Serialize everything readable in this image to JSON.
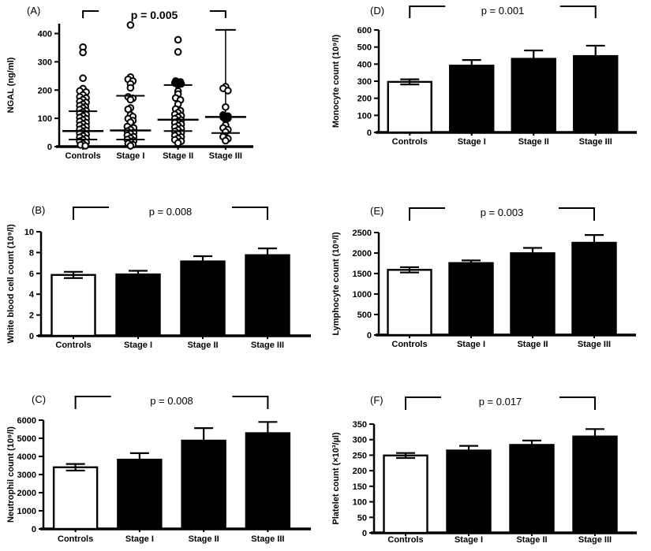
{
  "figure_style": {
    "background": "#ffffff",
    "ink": "#000000",
    "control_bar_fill": "#ffffff",
    "stage_bar_fill": "#000000"
  },
  "chart_data": [
    {
      "id": "A",
      "label": "(A)",
      "type": "scatter",
      "p_label": "p = 0.005",
      "p_bold": true,
      "ylabel": "NGAL (ng/ml)",
      "ylim": [
        0,
        435
      ],
      "yticks": [
        0,
        100,
        200,
        300,
        400
      ],
      "categories": [
        "Controls",
        "Stage I",
        "Stage II",
        "Stage III"
      ],
      "comparison": {
        "from": "Controls",
        "to": "Stage III"
      },
      "groups": [
        {
          "name": "Controls",
          "median": 55,
          "upper": 125,
          "lower": 25,
          "points": [
            [
              352,
              0
            ],
            [
              333,
              0
            ],
            [
              242,
              0
            ],
            [
              205,
              0
            ],
            [
              197,
              -4
            ],
            [
              193,
              4
            ],
            [
              183,
              0
            ],
            [
              176,
              -4
            ],
            [
              172,
              4
            ],
            [
              166,
              0
            ],
            [
              160,
              -4
            ],
            [
              156,
              4
            ],
            [
              150,
              0
            ],
            [
              145,
              -4
            ],
            [
              141,
              3
            ],
            [
              136,
              0
            ],
            [
              131,
              -4
            ],
            [
              127,
              4
            ],
            [
              122,
              0
            ],
            [
              117,
              -4
            ],
            [
              113,
              4
            ],
            [
              108,
              0
            ],
            [
              103,
              -4
            ],
            [
              99,
              4
            ],
            [
              94,
              0
            ],
            [
              89,
              -4
            ],
            [
              85,
              4
            ],
            [
              80,
              0
            ],
            [
              75,
              -4
            ],
            [
              71,
              4
            ],
            [
              66,
              0
            ],
            [
              61,
              -4
            ],
            [
              57,
              4
            ],
            [
              52,
              0
            ],
            [
              47,
              -4
            ],
            [
              43,
              4
            ],
            [
              38,
              0
            ],
            [
              33,
              -4
            ],
            [
              29,
              4
            ],
            [
              24,
              0
            ],
            [
              19,
              -4
            ],
            [
              15,
              4
            ],
            [
              10,
              0
            ],
            [
              6,
              -3
            ],
            [
              3,
              3
            ]
          ]
        },
        {
          "name": "Stage I",
          "median": 57,
          "upper": 180,
          "lower": 25,
          "points": [
            [
              430,
              0
            ],
            [
              246,
              0
            ],
            [
              238,
              -3
            ],
            [
              232,
              3
            ],
            [
              222,
              0
            ],
            [
              208,
              0
            ],
            [
              176,
              -3
            ],
            [
              171,
              3
            ],
            [
              166,
              0
            ],
            [
              137,
              0
            ],
            [
              132,
              -3
            ],
            [
              112,
              0
            ],
            [
              106,
              3
            ],
            [
              99,
              -3
            ],
            [
              92,
              3
            ],
            [
              86,
              0
            ],
            [
              71,
              -4
            ],
            [
              66,
              4
            ],
            [
              60,
              0
            ],
            [
              55,
              -4
            ],
            [
              50,
              4
            ],
            [
              45,
              0
            ],
            [
              40,
              -4
            ],
            [
              35,
              4
            ],
            [
              30,
              0
            ],
            [
              25,
              -4
            ],
            [
              21,
              4
            ],
            [
              16,
              0
            ],
            [
              11,
              -3
            ],
            [
              7,
              3
            ],
            [
              3,
              0
            ]
          ]
        },
        {
          "name": "Stage II",
          "median": 95,
          "upper": 218,
          "lower": 55,
          "points": [
            [
              378,
              0
            ],
            [
              335,
              0
            ],
            [
              232,
              -3,
              1
            ],
            [
              229,
              3,
              1
            ],
            [
              225,
              -4,
              1
            ],
            [
              222,
              4,
              1
            ],
            [
              218,
              0,
              1
            ],
            [
              196,
              0
            ],
            [
              186,
              0
            ],
            [
              172,
              -3
            ],
            [
              165,
              3
            ],
            [
              150,
              0
            ],
            [
              133,
              -3
            ],
            [
              127,
              3
            ],
            [
              120,
              0
            ],
            [
              114,
              -4
            ],
            [
              109,
              4
            ],
            [
              104,
              0
            ],
            [
              99,
              -4
            ],
            [
              94,
              4
            ],
            [
              89,
              0
            ],
            [
              84,
              -4
            ],
            [
              79,
              4
            ],
            [
              74,
              0
            ],
            [
              69,
              -4
            ],
            [
              64,
              4
            ],
            [
              59,
              0
            ],
            [
              54,
              -4
            ],
            [
              49,
              4
            ],
            [
              44,
              0
            ],
            [
              39,
              -4
            ],
            [
              34,
              4
            ],
            [
              29,
              0
            ],
            [
              24,
              -4
            ],
            [
              19,
              4
            ],
            [
              13,
              0
            ]
          ]
        },
        {
          "name": "Stage III",
          "median": 105,
          "lower": 48,
          "whisker_top": 413,
          "points": [
            [
              212,
              0
            ],
            [
              206,
              -3
            ],
            [
              198,
              3
            ],
            [
              140,
              0
            ],
            [
              112,
              -3,
              1
            ],
            [
              108,
              3,
              1
            ],
            [
              104,
              -3,
              1
            ],
            [
              100,
              3,
              1
            ],
            [
              96,
              0,
              1
            ],
            [
              76,
              0
            ],
            [
              66,
              -3
            ],
            [
              60,
              3
            ],
            [
              52,
              0
            ],
            [
              35,
              -3
            ],
            [
              28,
              3
            ],
            [
              21,
              0
            ]
          ]
        }
      ]
    },
    {
      "id": "B",
      "label": "(B)",
      "type": "bar",
      "p_label": "p = 0.008",
      "p_bold": false,
      "ylabel": "White blood cell count (10⁹/l)",
      "ylim": [
        0,
        10
      ],
      "yticks": [
        0,
        2,
        4,
        6,
        8,
        10
      ],
      "categories": [
        "Controls",
        "Stage I",
        "Stage II",
        "Stage III"
      ],
      "comparison": {
        "from": "Controls",
        "to": "Stage III"
      },
      "values": [
        5.85,
        5.9,
        7.15,
        7.75
      ],
      "errors": [
        0.3,
        0.35,
        0.5,
        0.65
      ],
      "bar_fills": [
        "#ffffff",
        "#000000",
        "#000000",
        "#000000"
      ]
    },
    {
      "id": "C",
      "label": "(C)",
      "type": "bar",
      "p_label": "p = 0.008",
      "p_bold": false,
      "ylabel": "Neutrophil count (10⁹/l)",
      "ylim": [
        0,
        6000
      ],
      "yticks": [
        0,
        1000,
        2000,
        3000,
        4000,
        5000,
        6000
      ],
      "categories": [
        "Controls",
        "Stage I",
        "Stage II",
        "Stage III"
      ],
      "comparison": {
        "from": "Controls",
        "to": "Stage III"
      },
      "values": [
        3400,
        3820,
        4870,
        5280
      ],
      "errors": [
        180,
        360,
        690,
        620
      ],
      "bar_fills": [
        "#ffffff",
        "#000000",
        "#000000",
        "#000000"
      ]
    },
    {
      "id": "D",
      "label": "(D)",
      "type": "bar",
      "p_label": "p = 0.001",
      "p_bold": false,
      "ylabel": "Monocyte count (10⁹/l)",
      "ylim": [
        0,
        600
      ],
      "yticks": [
        0,
        100,
        200,
        300,
        400,
        500,
        600
      ],
      "categories": [
        "Controls",
        "Stage I",
        "Stage II",
        "Stage III"
      ],
      "comparison": {
        "from": "Controls",
        "to": "Stage III"
      },
      "values": [
        296,
        391,
        431,
        447
      ],
      "errors": [
        15,
        33,
        49,
        61
      ],
      "bar_fills": [
        "#ffffff",
        "#000000",
        "#000000",
        "#000000"
      ]
    },
    {
      "id": "E",
      "label": "(E)",
      "type": "bar",
      "p_label": "p = 0.003",
      "p_bold": false,
      "ylabel": "Lymphocyte count (10⁹/l)",
      "ylim": [
        0,
        2500
      ],
      "yticks": [
        0,
        500,
        1000,
        1500,
        2000,
        2500
      ],
      "categories": [
        "Controls",
        "Stage I",
        "Stage II",
        "Stage III"
      ],
      "comparison": {
        "from": "Controls",
        "to": "Stage III"
      },
      "values": [
        1590,
        1755,
        1995,
        2250
      ],
      "errors": [
        65,
        65,
        130,
        190
      ],
      "bar_fills": [
        "#ffffff",
        "#000000",
        "#000000",
        "#000000"
      ]
    },
    {
      "id": "F",
      "label": "(F)",
      "type": "bar",
      "p_label": "p = 0.017",
      "p_bold": false,
      "ylabel": "Platelet count (×10³/µl)",
      "ylim": [
        0,
        350
      ],
      "yticks": [
        0,
        50,
        100,
        150,
        200,
        250,
        300,
        350
      ],
      "categories": [
        "Controls",
        "Stage I",
        "Stage II",
        "Stage III"
      ],
      "comparison": {
        "from": "Controls",
        "to": "Stage III"
      },
      "values": [
        249,
        265,
        283,
        310
      ],
      "errors": [
        8,
        15,
        14,
        24
      ],
      "bar_fills": [
        "#ffffff",
        "#000000",
        "#000000",
        "#000000"
      ]
    }
  ]
}
